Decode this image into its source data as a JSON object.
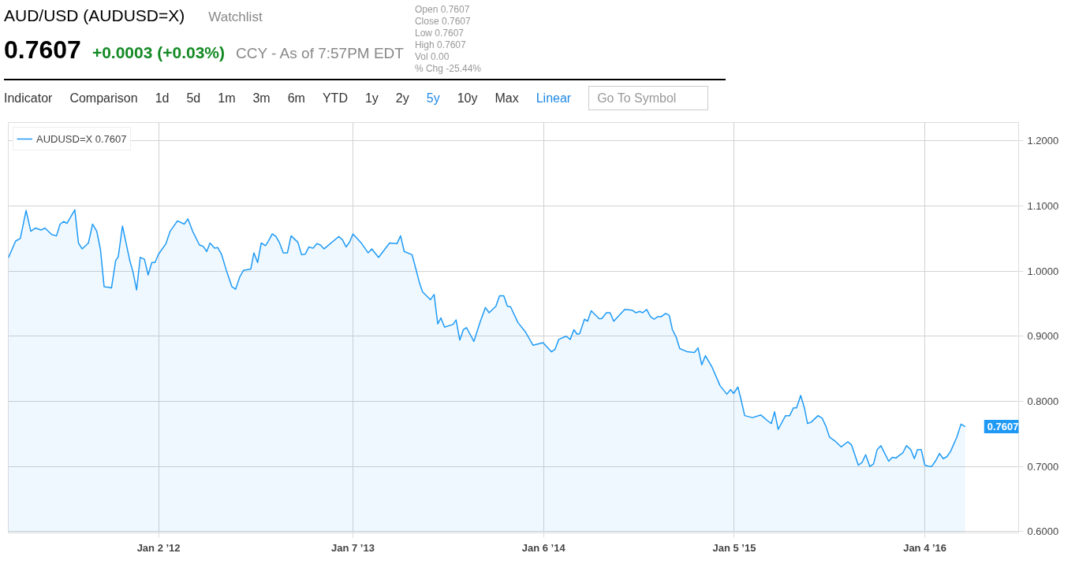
{
  "chart_data": {
    "type": "area",
    "title": "AUD/USD (AUDUSD=X)",
    "x": [
      "2011-03-21",
      "2011-04-04",
      "2011-04-13",
      "2011-04-24",
      "2011-05-03",
      "2011-05-12",
      "2011-05-23",
      "2011-05-30",
      "2011-06-12",
      "2011-06-21",
      "2011-06-28",
      "2011-07-05",
      "2011-07-11",
      "2011-07-26",
      "2011-08-02",
      "2011-08-09",
      "2011-08-21",
      "2011-08-29",
      "2011-09-06",
      "2011-09-13",
      "2011-09-20",
      "2011-09-29",
      "2011-10-04",
      "2011-10-12",
      "2011-10-17",
      "2011-10-25",
      "2011-11-08",
      "2011-11-14",
      "2011-11-21",
      "2011-11-28",
      "2011-12-06",
      "2011-12-13",
      "2011-12-20",
      "2011-12-26",
      "2012-01-02",
      "2012-01-16",
      "2012-01-24",
      "2012-02-07",
      "2012-02-20",
      "2012-02-27",
      "2012-03-07",
      "2012-03-20",
      "2012-03-27",
      "2012-04-03",
      "2012-04-09",
      "2012-04-18",
      "2012-04-24",
      "2012-05-01",
      "2012-05-10",
      "2012-05-21",
      "2012-05-28",
      "2012-06-05",
      "2012-06-12",
      "2012-06-26",
      "2012-07-02",
      "2012-07-09",
      "2012-07-16",
      "2012-07-24",
      "2012-07-29",
      "2012-08-06",
      "2012-08-13",
      "2012-08-20",
      "2012-08-27",
      "2012-09-04",
      "2012-09-11",
      "2012-09-24",
      "2012-10-01",
      "2012-10-08",
      "2012-10-15",
      "2012-10-23",
      "2012-10-30",
      "2012-11-06",
      "2012-11-13",
      "2012-12-11",
      "2012-12-18",
      "2012-12-25",
      "2013-01-01",
      "2013-01-07",
      "2013-01-22",
      "2013-02-05",
      "2013-02-12",
      "2013-02-25",
      "2013-03-18",
      "2013-04-01",
      "2013-04-08",
      "2013-04-15",
      "2013-04-30",
      "2013-05-07",
      "2013-05-14",
      "2013-05-20",
      "2013-06-04",
      "2013-06-11",
      "2013-06-18",
      "2013-06-24",
      "2013-07-01",
      "2013-07-17",
      "2013-07-23",
      "2013-07-30",
      "2013-08-06",
      "2013-08-12",
      "2013-08-26",
      "2013-09-07",
      "2013-09-17",
      "2013-09-24",
      "2013-10-07",
      "2013-10-14",
      "2013-10-22",
      "2013-10-29",
      "2013-11-04",
      "2013-11-18",
      "2013-12-02",
      "2013-12-17",
      "2014-01-05",
      "2014-01-21",
      "2014-01-28",
      "2014-02-04",
      "2014-02-18",
      "2014-02-26",
      "2014-03-05",
      "2014-03-11",
      "2014-03-16",
      "2014-03-25",
      "2014-03-31",
      "2014-04-07",
      "2014-04-22",
      "2014-04-27",
      "2014-05-06",
      "2014-05-13",
      "2014-05-20",
      "2014-05-28",
      "2014-06-10",
      "2014-06-24",
      "2014-07-01",
      "2014-07-09",
      "2014-07-14",
      "2014-07-22",
      "2014-07-29",
      "2014-08-05",
      "2014-08-12",
      "2014-08-19",
      "2014-08-27",
      "2014-09-03",
      "2014-09-09",
      "2014-09-16",
      "2014-09-23",
      "2014-10-08",
      "2014-10-21",
      "2014-10-28",
      "2014-11-04",
      "2014-11-11",
      "2014-11-24",
      "2014-12-09",
      "2014-12-22",
      "2014-12-29",
      "2015-01-04",
      "2015-01-12",
      "2015-01-18",
      "2015-01-25",
      "2015-02-09",
      "2015-02-25",
      "2015-03-10",
      "2015-03-17",
      "2015-03-23",
      "2015-03-30",
      "2015-04-13",
      "2015-04-21",
      "2015-04-28",
      "2015-05-04",
      "2015-05-12",
      "2015-05-19",
      "2015-05-25",
      "2015-06-01",
      "2015-06-14",
      "2015-06-22",
      "2015-06-29",
      "2015-07-06",
      "2015-07-18",
      "2015-07-28",
      "2015-08-10",
      "2015-08-17",
      "2015-08-30",
      "2015-09-06",
      "2015-09-13",
      "2015-09-21",
      "2015-09-28",
      "2015-10-05",
      "2015-10-12",
      "2015-10-27",
      "2015-11-03",
      "2015-11-10",
      "2015-11-16",
      "2015-11-23",
      "2015-11-30",
      "2015-12-08",
      "2015-12-15",
      "2015-12-21",
      "2015-12-28",
      "2016-01-04",
      "2016-01-13",
      "2016-01-17",
      "2016-01-24",
      "2016-02-01",
      "2016-02-08",
      "2016-02-15",
      "2016-02-22",
      "2016-03-05",
      "2016-03-13",
      "2016-03-21"
    ],
    "series": [
      {
        "name": "AUDUSD=X 0.7607",
        "color": "#1e9af6",
        "values": [
          1.02,
          1.046,
          1.05,
          1.093,
          1.061,
          1.066,
          1.063,
          1.066,
          1.056,
          1.054,
          1.072,
          1.076,
          1.073,
          1.094,
          1.043,
          1.034,
          1.043,
          1.072,
          1.061,
          1.033,
          0.976,
          0.975,
          0.974,
          1.016,
          1.022,
          1.069,
          1.016,
          0.999,
          0.971,
          1.021,
          1.018,
          0.994,
          1.013,
          1.013,
          1.026,
          1.042,
          1.061,
          1.077,
          1.072,
          1.08,
          1.061,
          1.04,
          1.038,
          1.03,
          1.043,
          1.035,
          1.036,
          1.026,
          1.002,
          0.976,
          0.972,
          0.991,
          1.001,
          1.003,
          1.028,
          1.013,
          1.043,
          1.039,
          1.045,
          1.057,
          1.053,
          1.043,
          1.028,
          1.028,
          1.054,
          1.044,
          1.025,
          1.026,
          1.037,
          1.035,
          1.042,
          1.04,
          1.034,
          1.053,
          1.048,
          1.037,
          1.045,
          1.057,
          1.044,
          1.028,
          1.034,
          1.021,
          1.043,
          1.042,
          1.054,
          1.03,
          1.025,
          1.004,
          0.982,
          0.968,
          0.956,
          0.964,
          0.919,
          0.928,
          0.914,
          0.918,
          0.925,
          0.894,
          0.91,
          0.913,
          0.892,
          0.922,
          0.944,
          0.936,
          0.946,
          0.962,
          0.962,
          0.946,
          0.945,
          0.921,
          0.907,
          0.886,
          0.89,
          0.876,
          0.88,
          0.895,
          0.9,
          0.895,
          0.91,
          0.903,
          0.904,
          0.926,
          0.923,
          0.939,
          0.927,
          0.927,
          0.936,
          0.936,
          0.923,
          0.93,
          0.941,
          0.94,
          0.936,
          0.938,
          0.936,
          0.941,
          0.93,
          0.926,
          0.93,
          0.93,
          0.935,
          0.932,
          0.91,
          0.899,
          0.881,
          0.876,
          0.875,
          0.882,
          0.856,
          0.87,
          0.852,
          0.824,
          0.811,
          0.818,
          0.812,
          0.822,
          0.803,
          0.778,
          0.775,
          0.779,
          0.77,
          0.766,
          0.784,
          0.757,
          0.778,
          0.778,
          0.79,
          0.79,
          0.809,
          0.79,
          0.766,
          0.768,
          0.778,
          0.774,
          0.762,
          0.745,
          0.738,
          0.73,
          0.738,
          0.733,
          0.702,
          0.706,
          0.718,
          0.7,
          0.704,
          0.726,
          0.732,
          0.708,
          0.714,
          0.713,
          0.717,
          0.721,
          0.732,
          0.726,
          0.712,
          0.726,
          0.726,
          0.702,
          0.7,
          0.7,
          0.708,
          0.72,
          0.712,
          0.715,
          0.723,
          0.745,
          0.765,
          0.761
        ]
      }
    ],
    "xlim": [
      "2011-03-21",
      "2016-07-01"
    ],
    "xticks": [
      {
        "value": "2012-01-02",
        "label": "Jan 2 ’12"
      },
      {
        "value": "2013-01-07",
        "label": "Jan 7 ’13"
      },
      {
        "value": "2014-01-06",
        "label": "Jan 6 ’14"
      },
      {
        "value": "2015-01-05",
        "label": "Jan 5 ’15"
      },
      {
        "value": "2016-01-04",
        "label": "Jan 4 ’16"
      }
    ],
    "ylim": [
      0.598,
      1.228
    ],
    "yticks": [
      {
        "value": 0.6,
        "label": "0.6000"
      },
      {
        "value": 0.7,
        "label": "0.7000"
      },
      {
        "value": 0.8,
        "label": "0.8000"
      },
      {
        "value": 0.9,
        "label": "0.9000"
      },
      {
        "value": 1.0,
        "label": "1.0000"
      },
      {
        "value": 1.1,
        "label": "1.1000"
      },
      {
        "value": 1.2,
        "label": "1.2000"
      }
    ],
    "grid": true,
    "legend": "top left",
    "line_style": "solid",
    "annotations": [
      "Watchlist",
      "0.7607",
      "+0.0003 (+0.03%)",
      "CCY - As of 7:57PM EDT",
      "Indicator",
      "Comparison",
      "1d",
      "5d",
      "1m",
      "3m",
      "6m",
      "YTD",
      "1y",
      "2y",
      "5y",
      "10y",
      "Max",
      "Linear",
      "Go To Symbol",
      "Open 0.7607",
      "Close 0.7607",
      "Low 0.7607",
      "High 0.7607",
      "Vol 0.00",
      "% Chg -25.44%",
      {
        "text": "0.7607",
        "x": "2016-03-21",
        "y": 0.7607
      }
    ]
  }
}
